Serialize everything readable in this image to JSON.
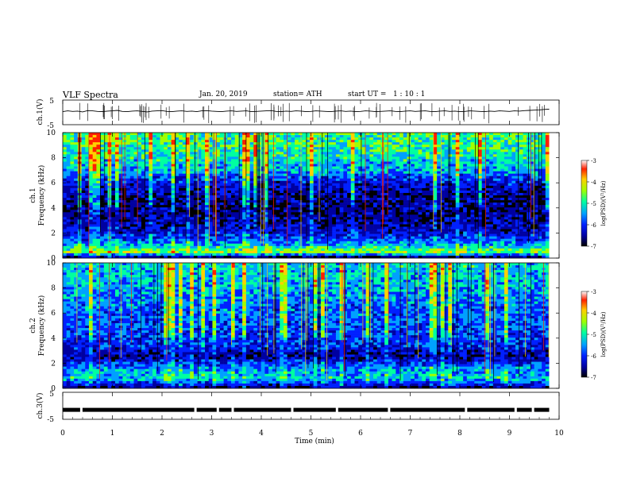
{
  "header": {
    "title": "VLF Spectra",
    "date": "Jan. 20, 2019",
    "station": "station= ATH",
    "start_ut": "start UT =   1 : 10 : 1"
  },
  "colors": {
    "colormap": [
      "#000000",
      "#0000a0",
      "#0020ff",
      "#00a0ff",
      "#00ffa0",
      "#a0ff00",
      "#ffd000",
      "#ff2000",
      "#ffffff"
    ],
    "trace": "#000000",
    "frame": "#000000"
  },
  "chart_data": [
    {
      "type": "line",
      "name": "ch1-waveform",
      "ylabel": "ch.1(V)",
      "ylim": [
        -5,
        5
      ],
      "yticks": [
        "5",
        "-5"
      ],
      "xlim": [
        0,
        10
      ],
      "x_step_min": 0.1,
      "y": [
        0.3,
        0.6,
        0.4,
        0.5,
        0.2,
        0.7,
        0.6,
        0.4,
        0.3,
        0.5,
        0.6,
        0.8,
        0.4,
        0.3,
        0.5,
        0.6,
        0.4,
        0.2,
        0.5,
        0.6,
        0.7,
        0.4,
        0.3,
        0.5,
        0.6,
        0.4,
        0.5,
        0.3,
        0.6,
        0.7,
        0.5,
        0.4,
        0.3,
        0.5,
        0.6,
        0.4,
        0.5,
        0.6,
        0.3,
        0.4,
        0.5,
        0.6,
        0.7,
        0.4,
        0.3,
        0.5,
        0.4,
        0.6,
        0.5,
        0.3,
        0.4,
        0.6,
        0.5,
        0.4,
        0.3,
        0.5,
        0.6,
        0.4,
        0.5,
        0.3,
        0.4,
        0.6,
        0.5,
        0.3,
        0.4,
        0.5,
        0.6,
        0.4,
        0.3,
        0.5,
        0.6,
        0.4,
        0.5,
        0.6,
        0.4,
        0.3,
        0.5,
        0.6,
        0.4,
        0.5,
        0.3,
        0.4,
        0.6,
        0.5,
        0.4,
        0.3,
        0.5,
        0.4,
        0.6,
        0.5,
        0.4,
        0.6,
        0.5,
        0.7,
        0.8,
        0.9,
        1.0,
        1.2,
        1.3
      ]
    },
    {
      "type": "heatmap",
      "name": "ch1-spectrogram",
      "ylabel": "Frequency (kHz)",
      "channel_label": "ch.1",
      "ylim": [
        0,
        10
      ],
      "yticks": [
        "0",
        "2",
        "4",
        "6",
        "8",
        "10"
      ],
      "xlim": [
        0,
        9.8
      ],
      "colorbar": {
        "label": "log(PSD)(V²/Hz)",
        "range": [
          -7,
          -3
        ],
        "ticks": [
          "-3",
          "-4",
          "-5",
          "-6",
          "-7"
        ]
      },
      "profile_log_psd": [
        {
          "kHz": 0.0,
          "value": -6.8
        },
        {
          "kHz": 0.5,
          "value": -4.2
        },
        {
          "kHz": 1.0,
          "value": -5.2
        },
        {
          "kHz": 2.0,
          "value": -6.0
        },
        {
          "kHz": 3.0,
          "value": -6.3
        },
        {
          "kHz": 4.5,
          "value": -6.4
        },
        {
          "kHz": 6.0,
          "value": -6.0
        },
        {
          "kHz": 7.0,
          "value": -5.2
        },
        {
          "kHz": 8.5,
          "value": -4.8
        },
        {
          "kHz": 10.0,
          "value": -4.6
        }
      ]
    },
    {
      "type": "heatmap",
      "name": "ch2-spectrogram",
      "ylabel": "Frequency (kHz)",
      "channel_label": "ch.2",
      "ylim": [
        0,
        10
      ],
      "yticks": [
        "0",
        "2",
        "4",
        "6",
        "8",
        "10"
      ],
      "xlim": [
        0,
        9.8
      ],
      "colorbar": {
        "label": "log(PSD)(V²/Hz)",
        "range": [
          -7,
          -3
        ],
        "ticks": [
          "-3",
          "-4",
          "-5",
          "-6",
          "-7"
        ]
      },
      "profile_log_psd": [
        {
          "kHz": 0.0,
          "value": -6.5
        },
        {
          "kHz": 0.8,
          "value": -5.0
        },
        {
          "kHz": 1.5,
          "value": -5.3
        },
        {
          "kHz": 2.5,
          "value": -6.3
        },
        {
          "kHz": 3.5,
          "value": -5.8
        },
        {
          "kHz": 5.0,
          "value": -5.6
        },
        {
          "kHz": 6.5,
          "value": -5.5
        },
        {
          "kHz": 8.0,
          "value": -5.2
        },
        {
          "kHz": 10.0,
          "value": -5.0
        }
      ]
    },
    {
      "type": "line",
      "name": "ch3-waveform",
      "ylabel": "ch.3(V)",
      "ylim": [
        -5,
        5
      ],
      "yticks": [
        "5",
        "-5"
      ],
      "xlim": [
        0,
        9.8
      ],
      "level": -1.5
    }
  ],
  "axis": {
    "xlabel": "Time (min)",
    "xticks": [
      "0",
      "1",
      "2",
      "3",
      "4",
      "5",
      "6",
      "7",
      "8",
      "9",
      "10"
    ]
  }
}
